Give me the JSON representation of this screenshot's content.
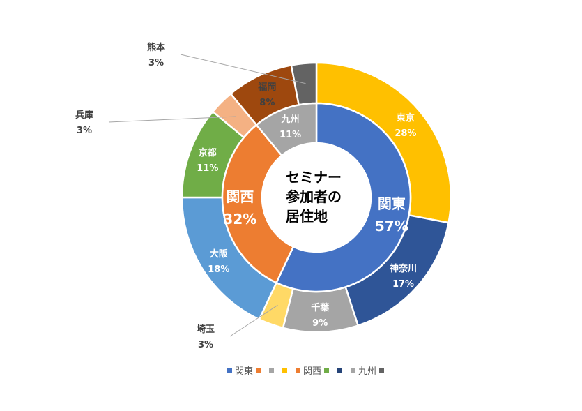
{
  "chart_data": {
    "type": "doughnut",
    "title_lines": [
      "セミナー",
      "参加者の",
      "居住地"
    ],
    "inner_ring": [
      {
        "name": "関東",
        "label": "関東",
        "value": 57,
        "value_label": "57%",
        "color": "#4472c4",
        "label_color": "#ffffff"
      },
      {
        "name": "関西",
        "label": "関西",
        "value": 32,
        "value_label": "32%",
        "color": "#ed7d31",
        "label_color": "#ffffff"
      },
      {
        "name": "九州",
        "label": "九州",
        "value": 11,
        "value_label": "11%",
        "color": "#a5a5a5",
        "label_color": "#ffffff"
      }
    ],
    "outer_ring": [
      {
        "name": "東京",
        "value": 28,
        "value_label": "28%",
        "color": "#ffc000",
        "label_color": "#ffffff"
      },
      {
        "name": "神奈川",
        "value": 17,
        "value_label": "17%",
        "color": "#2f5597",
        "label_color": "#ffffff"
      },
      {
        "name": "千葉",
        "value": 9,
        "value_label": "9%",
        "color": "#a5a5a5",
        "label_color": "#ffffff"
      },
      {
        "name": "埼玉",
        "value": 3,
        "value_label": "3%",
        "color": "#ffd966",
        "label_color": "#404040"
      },
      {
        "name": "大阪",
        "value": 18,
        "value_label": "18%",
        "color": "#5b9bd5",
        "label_color": "#ffffff"
      },
      {
        "name": "京都",
        "value": 11,
        "value_label": "11%",
        "color": "#70ad47",
        "label_color": "#ffffff"
      },
      {
        "name": "兵庫",
        "value": 3,
        "value_label": "3%",
        "color": "#f4b183",
        "label_color": "#404040"
      },
      {
        "name": "福岡",
        "value": 8,
        "value_label": "8%",
        "color": "#9e480e",
        "label_color": "#404040"
      },
      {
        "name": "熊本",
        "value": 3,
        "value_label": "3%",
        "color": "#636363",
        "label_color": "#404040"
      }
    ],
    "legend": [
      {
        "label": "関東",
        "color": "#4472c4"
      },
      {
        "label": "",
        "color": "#ed7d31"
      },
      {
        "label": "",
        "color": "#a5a5a5"
      },
      {
        "label": "",
        "color": "#ffc000"
      },
      {
        "label": "関西",
        "color": "#ed7d31"
      },
      {
        "label": "",
        "color": "#70ad47"
      },
      {
        "label": "",
        "color": "#264478"
      },
      {
        "label": "九州",
        "color": "#a5a5a5"
      },
      {
        "label": "",
        "color": "#636363"
      }
    ]
  }
}
